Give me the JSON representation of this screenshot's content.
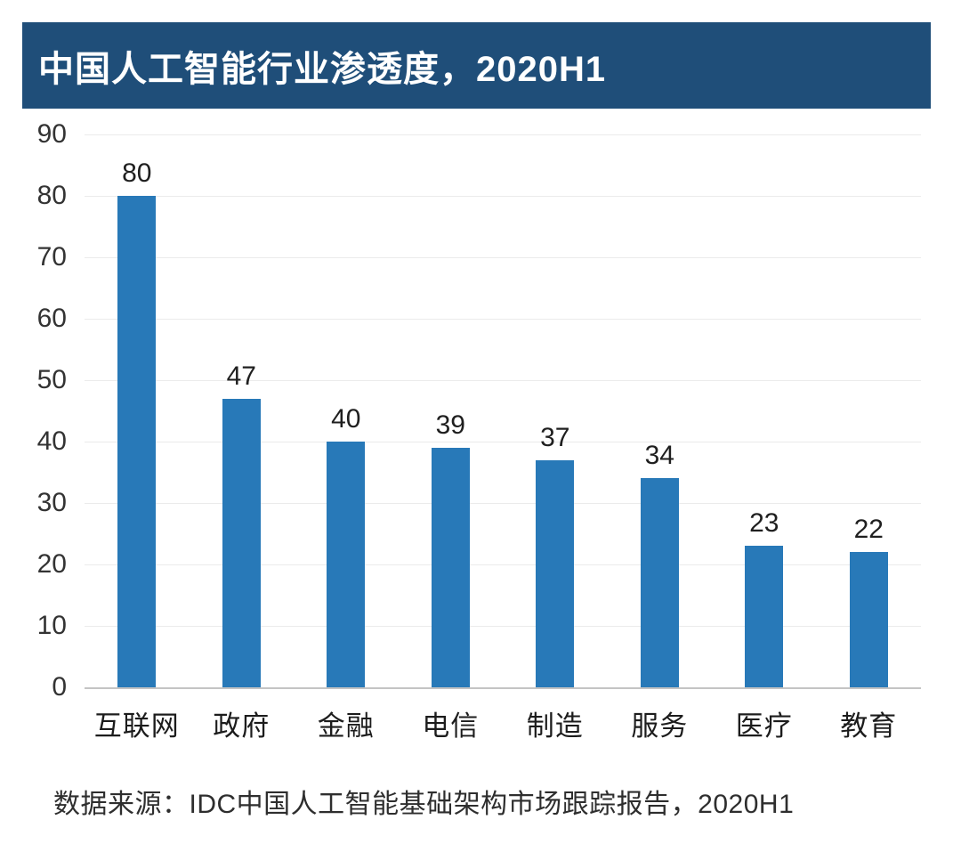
{
  "title": "中国人工智能行业渗透度，2020H1",
  "source": "数据来源：IDC中国人工智能基础架构市场跟踪报告，2020H1",
  "colors": {
    "banner": "#1f4e79",
    "bar": "#2879b8",
    "gridline": "#ebebeb",
    "axis_line": "#c4c4c4",
    "title_text": "#ffffff",
    "label_text": "#1f1f1f"
  },
  "chart_data": {
    "type": "bar",
    "title": "中国人工智能行业渗透度，2020H1",
    "categories": [
      "互联网",
      "政府",
      "金融",
      "电信",
      "制造",
      "服务",
      "医疗",
      "教育"
    ],
    "values": [
      80,
      47,
      40,
      39,
      37,
      34,
      23,
      22
    ],
    "xlabel": "",
    "ylabel": "",
    "ylim": [
      0,
      90
    ],
    "ytick_step": 10,
    "yticks": [
      0,
      10,
      20,
      30,
      40,
      50,
      60,
      70,
      80,
      90
    ],
    "grid": true,
    "legend_position": "none",
    "value_labels": true,
    "source_note": "数据来源：IDC中国人工智能基础架构市场跟踪报告，2020H1"
  }
}
